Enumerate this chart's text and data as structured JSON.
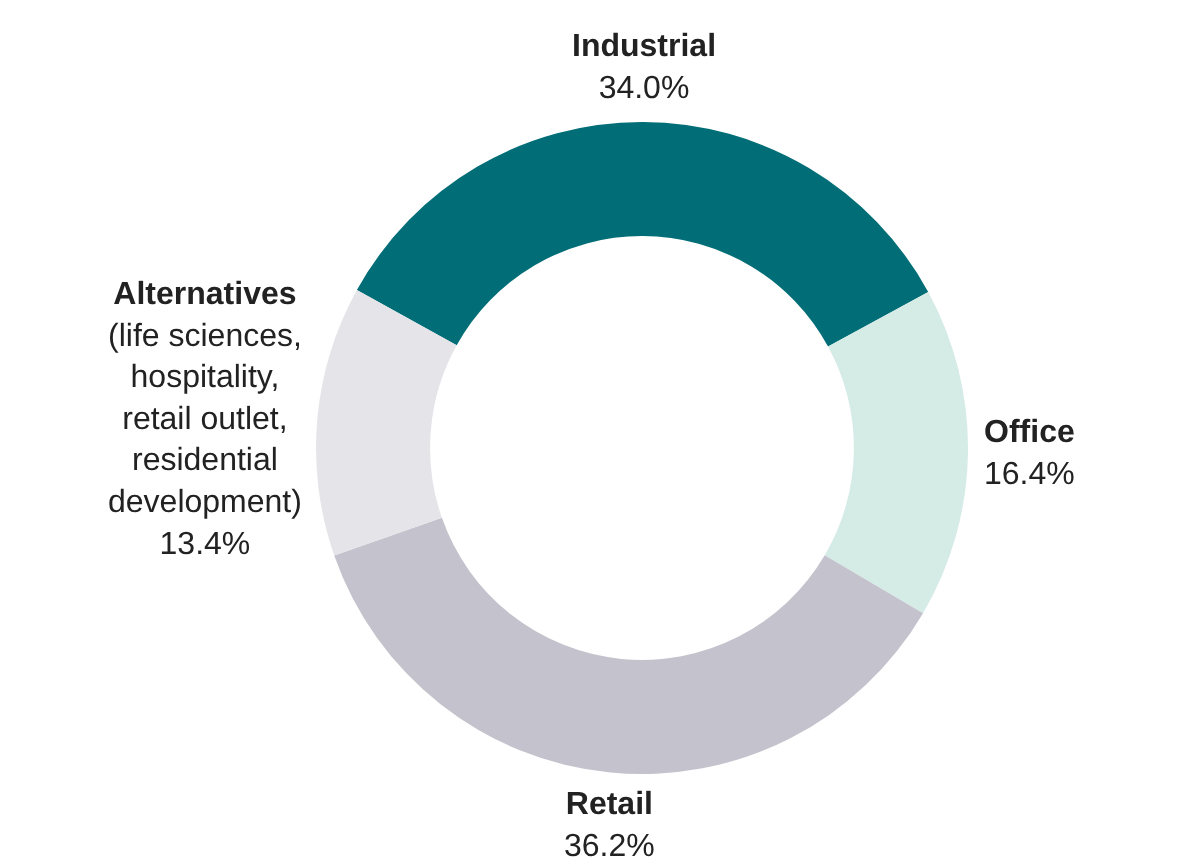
{
  "chart_data": {
    "type": "donut",
    "categories": [
      "Industrial",
      "Office",
      "Retail",
      "Alternatives (life sciences, hospitality, retail outlet, residential development)"
    ],
    "values": [
      34.0,
      16.4,
      36.2,
      13.4
    ],
    "colors": [
      "#006d77",
      "#d5ebe6",
      "#c4c3cd",
      "#e5e4e9"
    ],
    "value_labels": [
      "34.0%",
      "16.4%",
      "36.2%",
      "13.4%"
    ],
    "legend": false
  }
}
